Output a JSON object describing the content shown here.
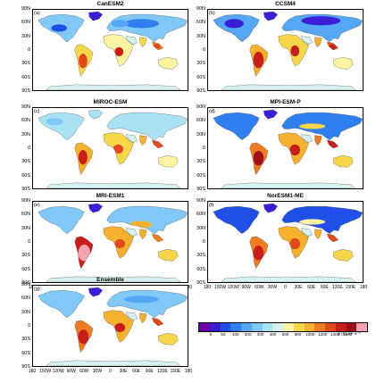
{
  "panels": [
    {
      "title": "CanESM2",
      "label": "(a)",
      "profile": "a"
    },
    {
      "title": "CCSM4",
      "label": "(b)",
      "profile": "b"
    },
    {
      "title": "MIROC-ESM",
      "label": "(c)",
      "profile": "c"
    },
    {
      "title": "MPI-ESM-P",
      "label": "(d)",
      "profile": "d"
    },
    {
      "title": "MRI-ESM1",
      "label": "(e)",
      "profile": "e"
    },
    {
      "title": "NorESM1-ME",
      "label": "(f)",
      "profile": "f"
    },
    {
      "title": "Ensemble",
      "label": "(g)",
      "profile": "g"
    }
  ],
  "lat_ticks": [
    "90N",
    "60N",
    "30N",
    "0",
    "30S",
    "60S",
    "90S"
  ],
  "lon_ticks": [
    "180",
    "150W",
    "120W",
    "90W",
    "60W",
    "30W",
    "0",
    "30E",
    "60E",
    "90E",
    "120E",
    "150E",
    "180"
  ],
  "colorbar": {
    "colors": [
      "#6a00a8",
      "#3a1fd6",
      "#1f4fe8",
      "#2f7ff0",
      "#53a7f5",
      "#7fc8f8",
      "#a9e2f5",
      "#d6f2f0",
      "#fbf3a0",
      "#f8d64a",
      "#f5b12e",
      "#ee7c22",
      "#e2481c",
      "#c81e1a",
      "#a00f18",
      "#f6a3b0"
    ],
    "tick_labels": [
      "0",
      "50",
      "100",
      "200",
      "300",
      "400",
      "600",
      "800",
      "1000",
      "1200",
      "1400",
      "1600"
    ],
    "units": "g (C) m² a⁻¹"
  }
}
